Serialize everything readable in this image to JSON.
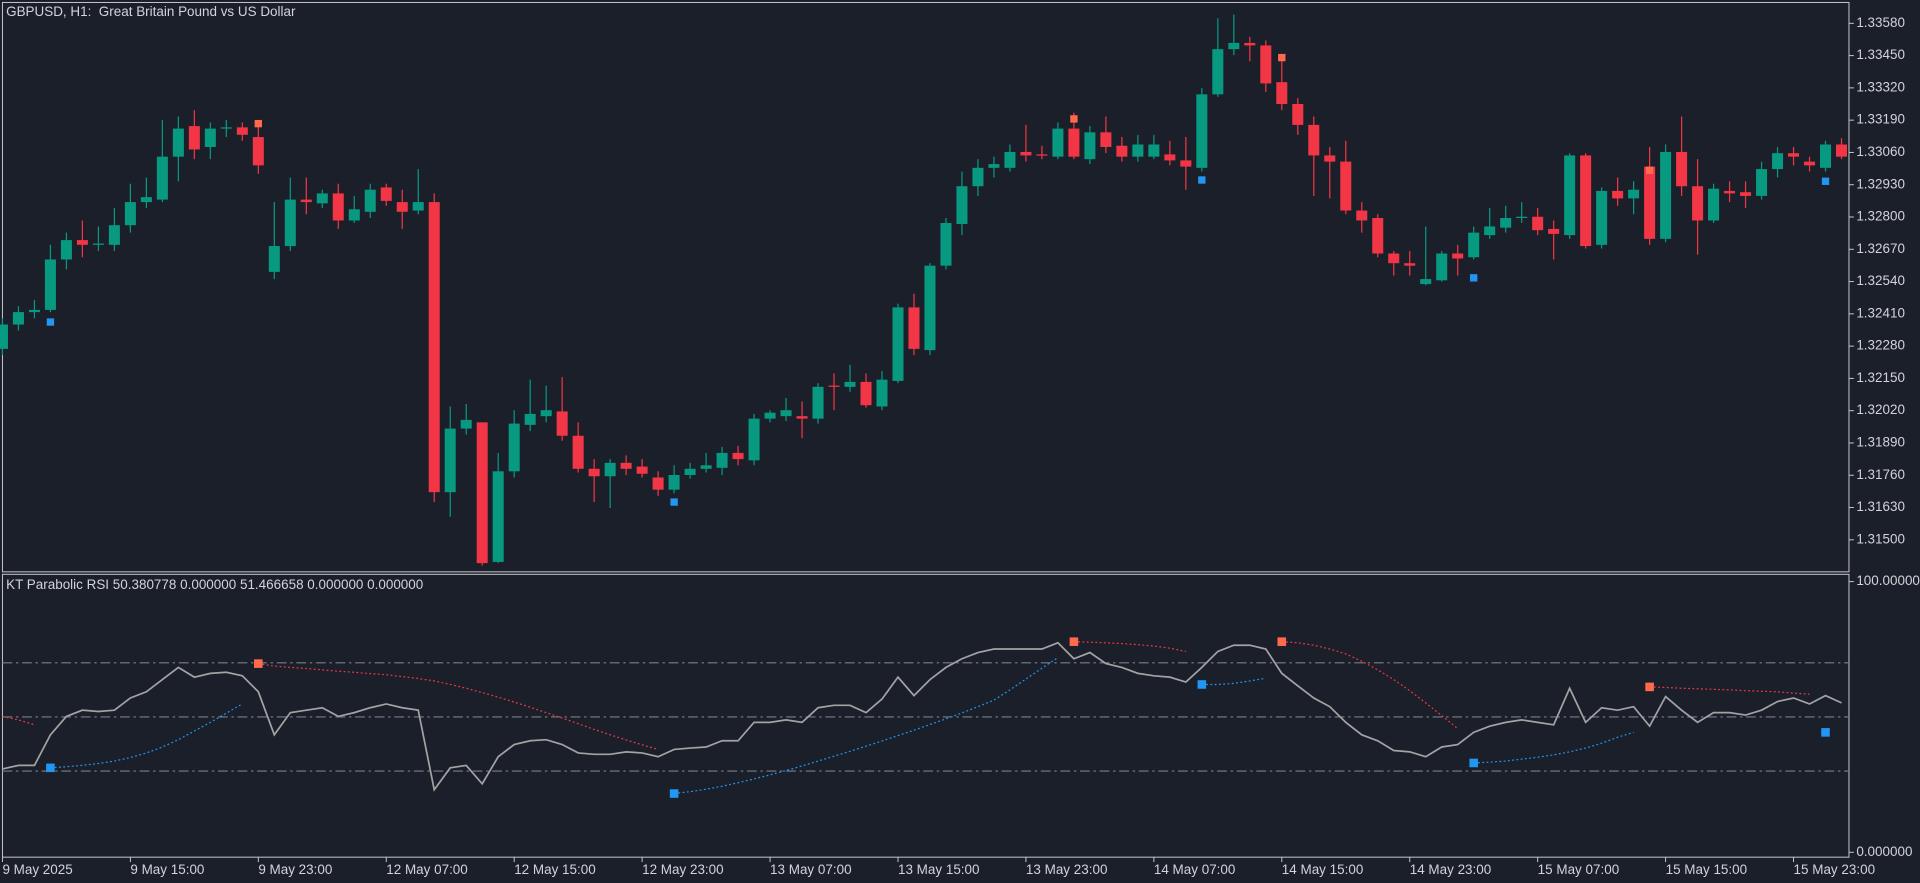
{
  "chart_data": [
    {
      "type": "candlestick",
      "title": "GBPUSD, H1:  Great Britain Pound vs US Dollar",
      "up_color": "#089981",
      "down_color": "#f23645",
      "buy_color": "#2196f3",
      "sell_color": "#ff6a4d",
      "ylim": [
        1.31371,
        1.33664
      ],
      "yticks": [
        {
          "value": 1.3358,
          "label": "1.33580"
        },
        {
          "value": 1.3345,
          "label": "1.33450"
        },
        {
          "value": 1.3332,
          "label": "1.33320"
        },
        {
          "value": 1.3319,
          "label": "1.33190"
        },
        {
          "value": 1.3306,
          "label": "1.33060"
        },
        {
          "value": 1.3293,
          "label": "1.32930"
        },
        {
          "value": 1.328,
          "label": "1.32800"
        },
        {
          "value": 1.3267,
          "label": "1.32670"
        },
        {
          "value": 1.3254,
          "label": "1.32540"
        },
        {
          "value": 1.3241,
          "label": "1.32410"
        },
        {
          "value": 1.3228,
          "label": "1.32280"
        },
        {
          "value": 1.3215,
          "label": "1.32150"
        },
        {
          "value": 1.3202,
          "label": "1.32020"
        },
        {
          "value": 1.3189,
          "label": "1.31890"
        },
        {
          "value": 1.3176,
          "label": "1.31760"
        },
        {
          "value": 1.3163,
          "label": "1.31630"
        },
        {
          "value": 1.315,
          "label": "1.31500"
        }
      ],
      "categories": [
        "9 May 2025",
        null,
        null,
        null,
        null,
        null,
        null,
        null,
        "9 May 15:00",
        null,
        null,
        null,
        null,
        null,
        null,
        null,
        "9 May 23:00",
        null,
        null,
        null,
        null,
        null,
        null,
        null,
        "12 May 07:00",
        null,
        null,
        null,
        null,
        null,
        null,
        null,
        "12 May 15:00",
        null,
        null,
        null,
        null,
        null,
        null,
        null,
        "12 May 23:00",
        null,
        null,
        null,
        null,
        null,
        null,
        null,
        "13 May 07:00",
        null,
        null,
        null,
        null,
        null,
        null,
        null,
        "13 May 15:00",
        null,
        null,
        null,
        null,
        null,
        null,
        null,
        "13 May 23:00",
        null,
        null,
        null,
        null,
        null,
        null,
        null,
        "14 May 07:00",
        null,
        null,
        null,
        null,
        null,
        null,
        null,
        "14 May 15:00",
        null,
        null,
        null,
        null,
        null,
        null,
        null,
        "14 May 23:00",
        null,
        null,
        null,
        null,
        null,
        null,
        null,
        "15 May 07:00",
        null,
        null,
        null,
        null,
        null,
        null,
        null,
        "15 May 15:00",
        null,
        null,
        null,
        null,
        null,
        null,
        null,
        "15 May 23:00",
        null,
        null,
        null
      ],
      "open": [
        1.32269,
        1.32367,
        1.32417,
        1.32426,
        1.32629,
        1.32707,
        1.32688,
        1.32688,
        1.32767,
        1.3286,
        1.3287,
        1.33043,
        1.33166,
        1.33082,
        1.33156,
        1.33161,
        1.33122,
        1.32579,
        1.32683,
        1.3287,
        1.32855,
        1.32895,
        1.32786,
        1.32821,
        1.32919,
        1.3286,
        1.32826,
        1.3286,
        1.31692,
        1.31948,
        1.31973,
        1.31411,
        1.31776,
        1.31963,
        1.31998,
        1.32017,
        1.31919,
        1.31786,
        1.31756,
        1.3181,
        1.31795,
        1.31751,
        1.31702,
        1.31761,
        1.31786,
        1.3179,
        1.3185,
        1.3182,
        1.31988,
        1.31998,
        1.31998,
        1.31988,
        1.32121,
        1.32116,
        1.32136,
        1.32037,
        1.3214,
        1.32436,
        1.32264,
        1.32604,
        1.32772,
        1.32924,
        1.32998,
        1.32998,
        1.33062,
        1.33052,
        1.33043,
        1.33156,
        1.33033,
        1.33141,
        1.33087,
        1.33043,
        1.33043,
        1.33052,
        1.33028,
        1.32998,
        1.33294,
        1.33476,
        1.33501,
        1.33491,
        1.33343,
        1.33255,
        1.33171,
        1.33048,
        1.33023,
        1.32826,
        1.32796,
        1.32653,
        1.32614,
        1.3253,
        1.32545,
        1.32653,
        1.32638,
        1.32727,
        1.32757,
        1.32796,
        1.32801,
        1.32752,
        1.32727,
        1.33048,
        1.32688,
        1.32905,
        1.32875,
        1.33003,
        1.32712,
        1.33062,
        1.32924,
        1.32786,
        1.32905,
        1.329,
        1.32885,
        1.32993,
        1.33057,
        1.33023,
        1.32998,
        1.33092
      ],
      "high": [
        1.32392,
        1.32441,
        1.32466,
        1.32688,
        1.32737,
        1.32786,
        1.32762,
        1.32836,
        1.32934,
        1.32959,
        1.33191,
        1.33205,
        1.3323,
        1.33181,
        1.33191,
        1.33181,
        1.33181,
        1.3286,
        1.32959,
        1.32959,
        1.3291,
        1.32934,
        1.32885,
        1.32934,
        1.32934,
        1.3291,
        1.32993,
        1.32895,
        1.32037,
        1.32047,
        1.31973,
        1.3185,
        1.32022,
        1.32145,
        1.32121,
        1.32155,
        1.31973,
        1.31825,
        1.31825,
        1.3184,
        1.31825,
        1.31776,
        1.318,
        1.3181,
        1.3185,
        1.31874,
        1.31879,
        1.32007,
        1.32022,
        1.32071,
        1.32057,
        1.32131,
        1.3217,
        1.32205,
        1.3217,
        1.3218,
        1.32451,
        1.32491,
        1.32614,
        1.32796,
        1.32983,
        1.33033,
        1.33043,
        1.33092,
        1.33171,
        1.33087,
        1.33181,
        1.3322,
        1.33166,
        1.33205,
        1.33122,
        1.33131,
        1.33131,
        1.33107,
        1.33122,
        1.33319,
        1.336,
        1.33615,
        1.33526,
        1.33511,
        1.33452,
        1.33279,
        1.33205,
        1.33082,
        1.33107,
        1.3286,
        1.32811,
        1.32663,
        1.32663,
        1.32762,
        1.32663,
        1.32688,
        1.32762,
        1.32836,
        1.32845,
        1.3286,
        1.32836,
        1.32786,
        1.33057,
        1.33057,
        1.32919,
        1.32959,
        1.32944,
        1.33082,
        1.33092,
        1.33205,
        1.33033,
        1.32934,
        1.32944,
        1.32944,
        1.33023,
        1.33082,
        1.33082,
        1.33043,
        1.33107,
        1.33117
      ],
      "low": [
        1.32244,
        1.32343,
        1.32392,
        1.32417,
        1.32589,
        1.32638,
        1.32663,
        1.32663,
        1.32737,
        1.32836,
        1.3286,
        1.32944,
        1.33033,
        1.33033,
        1.33122,
        1.33107,
        1.32974,
        1.3255,
        1.32663,
        1.32811,
        1.32836,
        1.32752,
        1.32776,
        1.32796,
        1.32845,
        1.32752,
        1.32811,
        1.31652,
        1.31593,
        1.31924,
        1.31396,
        1.31406,
        1.31751,
        1.31938,
        1.31973,
        1.31899,
        1.31771,
        1.31652,
        1.31628,
        1.31761,
        1.31751,
        1.31677,
        1.31687,
        1.31746,
        1.31771,
        1.31761,
        1.318,
        1.318,
        1.31973,
        1.31978,
        1.31909,
        1.31968,
        1.32022,
        1.32096,
        1.32032,
        1.32022,
        1.32131,
        1.32244,
        1.32244,
        1.32589,
        1.32727,
        1.32885,
        1.32959,
        1.32983,
        1.33023,
        1.33033,
        1.33033,
        1.33033,
        1.33013,
        1.33057,
        1.33023,
        1.33023,
        1.33033,
        1.33008,
        1.3291,
        1.32983,
        1.33284,
        1.33452,
        1.33427,
        1.33304,
        1.3323,
        1.33131,
        1.32885,
        1.32875,
        1.32811,
        1.32737,
        1.32638,
        1.32564,
        1.32564,
        1.32525,
        1.3254,
        1.32564,
        1.32629,
        1.32712,
        1.32737,
        1.32776,
        1.32727,
        1.32629,
        1.32712,
        1.32673,
        1.32673,
        1.32845,
        1.32811,
        1.32688,
        1.32698,
        1.32885,
        1.32648,
        1.32776,
        1.3286,
        1.32836,
        1.3287,
        1.32959,
        1.33008,
        1.32983,
        1.32983,
        1.33033
      ],
      "close": [
        1.32367,
        1.32417,
        1.32426,
        1.32629,
        1.32707,
        1.32688,
        1.32693,
        1.32767,
        1.3286,
        1.3288,
        1.33043,
        1.33156,
        1.33072,
        1.33156,
        1.33161,
        1.33131,
        1.33008,
        1.32683,
        1.3287,
        1.3286,
        1.32895,
        1.32786,
        1.32831,
        1.3291,
        1.32865,
        1.32821,
        1.3286,
        1.31692,
        1.31948,
        1.31983,
        1.31406,
        1.31776,
        1.31968,
        1.32007,
        1.32022,
        1.31919,
        1.31786,
        1.31756,
        1.3181,
        1.31786,
        1.31766,
        1.31702,
        1.31761,
        1.31786,
        1.318,
        1.3185,
        1.31825,
        1.31988,
        1.32012,
        1.32022,
        1.31988,
        1.32116,
        1.32116,
        1.32136,
        1.32042,
        1.32145,
        1.32436,
        1.32269,
        1.32604,
        1.32776,
        1.32924,
        1.32998,
        1.33013,
        1.33062,
        1.33048,
        1.33048,
        1.33156,
        1.33043,
        1.33141,
        1.33082,
        1.33043,
        1.33092,
        1.33092,
        1.33028,
        1.33003,
        1.33294,
        1.33476,
        1.33501,
        1.33491,
        1.33338,
        1.33255,
        1.33171,
        1.33048,
        1.33023,
        1.32826,
        1.32786,
        1.32653,
        1.32614,
        1.32604,
        1.3255,
        1.32653,
        1.32633,
        1.32737,
        1.32762,
        1.32796,
        1.32801,
        1.32747,
        1.32732,
        1.33048,
        1.32683,
        1.32905,
        1.32875,
        1.3291,
        1.32712,
        1.33062,
        1.32924,
        1.32786,
        1.32914,
        1.32895,
        1.32885,
        1.32993,
        1.33057,
        1.33043,
        1.33008,
        1.33092,
        1.33043
      ],
      "buy_markers": [
        {
          "index": 3,
          "price": 1.32377
        },
        {
          "index": 42,
          "price": 1.31652
        },
        {
          "index": 75,
          "price": 1.32949
        },
        {
          "index": 92,
          "price": 1.32555
        },
        {
          "index": 114,
          "price": 1.32944
        }
      ],
      "sell_markers": [
        {
          "index": 16,
          "price": 1.33176
        },
        {
          "index": 67,
          "price": 1.33195
        },
        {
          "index": 80,
          "price": 1.33442
        },
        {
          "index": 103,
          "price": 1.32988
        }
      ]
    },
    {
      "type": "line",
      "title": "KT Parabolic RSI 50.380778 0.000000 51.466658 0.000000 0.000000",
      "ylim": [
        -1.8,
        102.7
      ],
      "yticks": [
        {
          "value": 100,
          "label": "100.000000"
        },
        {
          "value": 0,
          "label": "0.000000"
        }
      ],
      "levels": [
        30,
        50,
        70
      ],
      "level_color": "#7a7e88",
      "rsi": {
        "color": "#a3a3a3",
        "values": [
          30.8,
          32.1,
          32.1,
          43.4,
          50.2,
          52.5,
          52.0,
          52.5,
          57.0,
          59.3,
          63.8,
          68.3,
          64.7,
          66.1,
          66.5,
          65.2,
          59.3,
          43.4,
          51.6,
          52.5,
          53.4,
          50.2,
          51.6,
          53.4,
          54.8,
          53.4,
          52.5,
          23.1,
          31.2,
          32.1,
          25.3,
          35.3,
          39.8,
          41.2,
          41.6,
          39.8,
          36.7,
          36.2,
          36.2,
          37.1,
          36.7,
          35.3,
          38.0,
          38.5,
          38.9,
          41.2,
          41.2,
          48.0,
          48.0,
          48.9,
          48.0,
          53.4,
          54.3,
          54.3,
          51.6,
          56.6,
          64.7,
          57.9,
          63.8,
          68.3,
          71.5,
          73.8,
          75.1,
          75.1,
          75.1,
          75.1,
          77.4,
          71.5,
          73.8,
          69.7,
          68.3,
          66.1,
          65.2,
          64.7,
          62.9,
          68.3,
          74.2,
          76.5,
          76.5,
          75.1,
          66.1,
          61.5,
          57.0,
          53.8,
          48.0,
          43.4,
          41.2,
          37.6,
          37.1,
          35.3,
          38.9,
          39.8,
          44.3,
          46.6,
          48.0,
          48.9,
          48.0,
          47.1,
          60.6,
          48.0,
          53.4,
          52.5,
          53.8,
          46.6,
          57.5,
          52.5,
          48.0,
          51.6,
          51.6,
          50.7,
          52.5,
          55.7,
          57.0,
          54.8,
          57.9,
          55.2
        ]
      },
      "sar_above": {
        "color": "#f23645",
        "marker_color": "#ff6a4d",
        "values": [
          50.2,
          48.9,
          47.1,
          null,
          null,
          null,
          null,
          null,
          null,
          null,
          null,
          null,
          null,
          null,
          null,
          null,
          69.7,
          68.8,
          68.3,
          67.9,
          67.4,
          66.9,
          66.5,
          66.0,
          65.6,
          64.9,
          64.2,
          63.3,
          62.0,
          60.6,
          59.0,
          57.3,
          55.5,
          53.6,
          51.6,
          49.6,
          47.5,
          45.4,
          43.4,
          41.5,
          39.7,
          38.0,
          null,
          null,
          null,
          null,
          null,
          null,
          null,
          null,
          null,
          null,
          null,
          null,
          null,
          null,
          null,
          null,
          null,
          null,
          null,
          null,
          null,
          null,
          null,
          null,
          null,
          77.8,
          77.6,
          77.4,
          77.1,
          76.7,
          76.2,
          75.4,
          74.2,
          null,
          null,
          null,
          null,
          null,
          77.8,
          77.4,
          76.5,
          75.1,
          73.3,
          70.6,
          67.4,
          63.8,
          59.7,
          55.2,
          50.5,
          45.7,
          null,
          null,
          null,
          null,
          null,
          null,
          null,
          null,
          null,
          null,
          null,
          61.1,
          60.9,
          60.6,
          60.4,
          60.2,
          60.0,
          59.7,
          59.5,
          59.3,
          58.8,
          58.4,
          null,
          null
        ]
      },
      "sar_below": {
        "color": "#2196f3",
        "marker_color": "#2196f3",
        "values": [
          null,
          null,
          null,
          31.2,
          31.6,
          32.1,
          32.8,
          33.7,
          35.0,
          36.7,
          38.9,
          41.6,
          44.8,
          48.0,
          51.4,
          54.8,
          null,
          null,
          null,
          null,
          null,
          null,
          null,
          null,
          null,
          null,
          null,
          null,
          null,
          null,
          null,
          null,
          null,
          null,
          null,
          null,
          null,
          null,
          null,
          null,
          null,
          null,
          21.7,
          22.4,
          23.3,
          24.4,
          25.7,
          27.1,
          28.6,
          30.2,
          31.9,
          33.7,
          35.5,
          37.3,
          39.2,
          41.1,
          43.1,
          45.1,
          47.2,
          49.3,
          51.5,
          53.8,
          56.2,
          60.0,
          64.0,
          68.0,
          71.9,
          null,
          null,
          null,
          null,
          null,
          null,
          null,
          null,
          62.0,
          62.0,
          62.4,
          63.3,
          64.3,
          null,
          null,
          null,
          null,
          null,
          null,
          null,
          null,
          null,
          null,
          null,
          null,
          33.0,
          33.3,
          33.7,
          34.4,
          35.1,
          36.0,
          37.1,
          38.5,
          40.3,
          42.5,
          44.3,
          null,
          null,
          null,
          null,
          null,
          null,
          null,
          null,
          null,
          null,
          null,
          44.3,
          null
        ]
      }
    }
  ]
}
